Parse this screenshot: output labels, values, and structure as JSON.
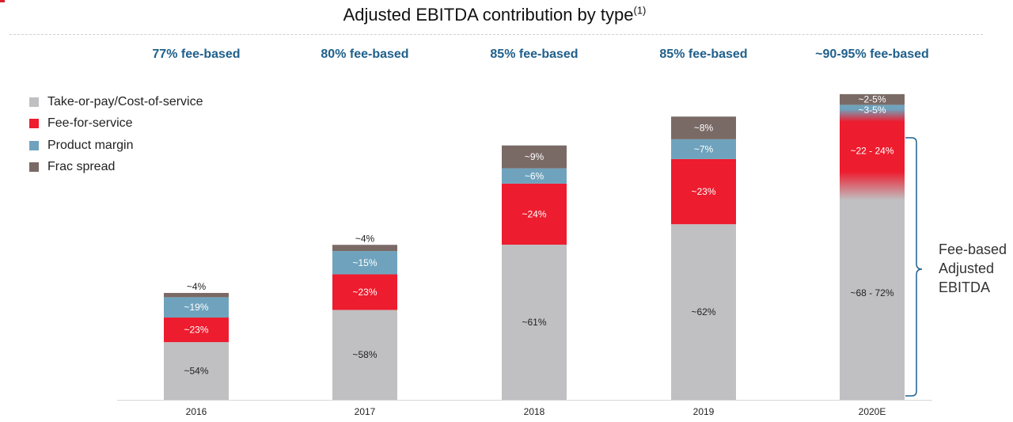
{
  "title": "Adjusted EBITDA contribution by type",
  "title_superscript": "(1)",
  "fee_based_labels": [
    "77% fee-based",
    "80% fee-based",
    "85% fee-based",
    "85% fee-based",
    "~90-95% fee-based"
  ],
  "brace_annotation": [
    "Fee-based",
    "Adjusted",
    "EBITDA"
  ],
  "colors": {
    "take_or_pay": "#c0c0c2",
    "fee_for_service": "#ed1c2e",
    "product_margin": "#6fa3bd",
    "frac_spread": "#7a6a66",
    "fee_label": "#1f5f8b",
    "brace": "#1f5f8b"
  },
  "chart_data": {
    "type": "bar",
    "stacked": true,
    "categories": [
      "2016",
      "2017",
      "2018",
      "2019",
      "2020E"
    ],
    "series": [
      {
        "name": "Take-or-pay/Cost-of-service",
        "values": [
          54,
          58,
          61,
          62,
          70
        ],
        "labels": [
          "~54%",
          "~58%",
          "~61%",
          "~62%",
          "~68 - 72%"
        ]
      },
      {
        "name": "Fee-for-service",
        "values": [
          23,
          23,
          24,
          23,
          23
        ],
        "labels": [
          "~23%",
          "~23%",
          "~24%",
          "~23%",
          "~22 - 24%"
        ]
      },
      {
        "name": "Product margin",
        "values": [
          19,
          15,
          6,
          7,
          3.5
        ],
        "labels": [
          "~19%",
          "~15%",
          "~6%",
          "~7%",
          "~3-5%"
        ]
      },
      {
        "name": "Frac spread",
        "values": [
          4,
          4,
          9,
          8,
          3.5
        ],
        "labels": [
          "~4%",
          "~4%",
          "~9%",
          "~8%",
          "~2-5%"
        ]
      }
    ],
    "relative_totals": [
      1.0,
      1.45,
      2.38,
      2.65,
      2.86
    ],
    "legend_position": "top-left",
    "grid": false
  }
}
